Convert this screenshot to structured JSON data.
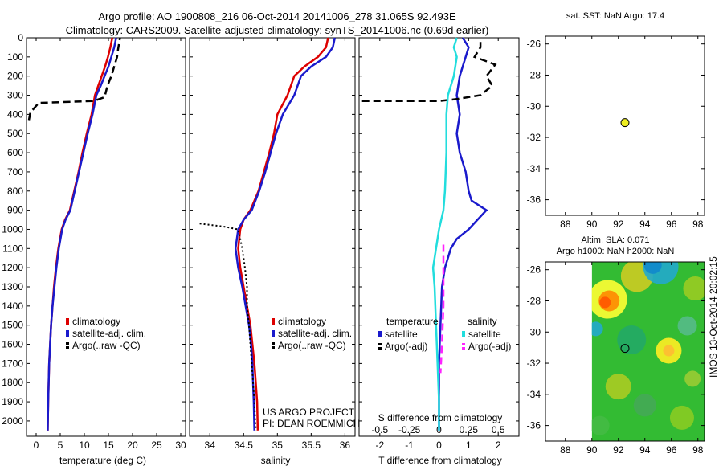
{
  "header": {
    "line1": "Argo profile: AO 1900808_216 06-Oct-2014 20141006_278 31.065S 92.493E",
    "line2": "Climatology: CARS2009. Satellite-adjusted climatology: synTS_20141006.nc (0.69d earlier)"
  },
  "colors": {
    "climatology": "#dd0000",
    "satellite": "#1a1acc",
    "argo": "#000000",
    "sat_salinity": "#22dddd",
    "argo_salinity": "#ff22ff",
    "sst_marker": "#eeee22"
  },
  "credits": {
    "line1": "US ARGO PROJECT",
    "line2": "PI: DEAN ROEMMICH"
  },
  "timestamp": "IMOS 13-Oct-2014 20:02:15",
  "chart_data": [
    {
      "id": "temperature",
      "type": "line",
      "xlabel": "temperature (deg C)",
      "ylabel": "",
      "xlim": [
        -2,
        31
      ],
      "ylim": [
        0,
        2080
      ],
      "y_reversed": true,
      "xticks": [
        0,
        5,
        10,
        15,
        20,
        25,
        30
      ],
      "yticks": [
        0,
        100,
        200,
        300,
        400,
        500,
        600,
        700,
        800,
        900,
        1000,
        1100,
        1200,
        1300,
        1400,
        1500,
        1600,
        1700,
        1800,
        1900,
        2000
      ],
      "legend": [
        "climatology",
        "satellite-adj. clim.",
        "Argo(..raw -QC)"
      ],
      "series": [
        {
          "name": "climatology",
          "color": "#dd0000",
          "style": "solid",
          "points": [
            [
              15.8,
              0
            ],
            [
              15.4,
              50
            ],
            [
              14.9,
              100
            ],
            [
              14.3,
              150
            ],
            [
              13.6,
              200
            ],
            [
              12.9,
              250
            ],
            [
              12.2,
              300
            ],
            [
              11.5,
              400
            ],
            [
              10.5,
              500
            ],
            [
              9.6,
              600
            ],
            [
              8.8,
              700
            ],
            [
              7.9,
              800
            ],
            [
              7.0,
              900
            ],
            [
              6.0,
              950
            ],
            [
              5.3,
              1000
            ],
            [
              4.6,
              1100
            ],
            [
              4.1,
              1200
            ],
            [
              3.7,
              1300
            ],
            [
              3.4,
              1400
            ],
            [
              3.1,
              1500
            ],
            [
              2.9,
              1600
            ],
            [
              2.7,
              1700
            ],
            [
              2.6,
              1800
            ],
            [
              2.5,
              1900
            ],
            [
              2.4,
              2050
            ]
          ]
        },
        {
          "name": "satellite-adj. clim.",
          "color": "#1a1acc",
          "style": "solid",
          "points": [
            [
              16.6,
              0
            ],
            [
              16.2,
              50
            ],
            [
              15.6,
              100
            ],
            [
              15.0,
              150
            ],
            [
              14.2,
              200
            ],
            [
              13.4,
              250
            ],
            [
              12.5,
              300
            ],
            [
              11.7,
              400
            ],
            [
              10.7,
              500
            ],
            [
              9.8,
              600
            ],
            [
              8.9,
              700
            ],
            [
              8.0,
              800
            ],
            [
              7.1,
              900
            ],
            [
              6.1,
              950
            ],
            [
              5.4,
              1000
            ],
            [
              4.7,
              1100
            ],
            [
              4.2,
              1200
            ],
            [
              3.8,
              1300
            ],
            [
              3.4,
              1400
            ],
            [
              3.1,
              1500
            ],
            [
              2.9,
              1600
            ],
            [
              2.7,
              1700
            ],
            [
              2.6,
              1800
            ],
            [
              2.5,
              1900
            ],
            [
              2.4,
              2050
            ]
          ]
        },
        {
          "name": "Argo(..raw -QC)",
          "color": "#000000",
          "style": "dashed",
          "points": [
            [
              -1.5,
              430
            ],
            [
              -1.2,
              390
            ],
            [
              0.2,
              350
            ],
            [
              0.5,
              340
            ],
            [
              12,
              330
            ],
            [
              14.2,
              310
            ],
            [
              14.8,
              250
            ],
            [
              15.6,
              200
            ],
            [
              16.2,
              150
            ],
            [
              16.8,
              100
            ],
            [
              17.0,
              60
            ],
            [
              17.2,
              30
            ],
            [
              17.4,
              0
            ]
          ]
        }
      ]
    },
    {
      "id": "salinity",
      "type": "line",
      "xlabel": "salinity",
      "ylabel": "",
      "xlim": [
        33.7,
        36.15
      ],
      "ylim": [
        0,
        2080
      ],
      "y_reversed": true,
      "xticks": [
        34,
        34.5,
        35,
        35.5,
        36
      ],
      "legend": [
        "climatology",
        "satellite-adj. clim.",
        "Argo(..raw -QC)"
      ],
      "series": [
        {
          "name": "climatology",
          "color": "#dd0000",
          "style": "solid",
          "points": [
            [
              35.75,
              0
            ],
            [
              35.72,
              50
            ],
            [
              35.6,
              100
            ],
            [
              35.4,
              150
            ],
            [
              35.25,
              200
            ],
            [
              35.15,
              300
            ],
            [
              35.0,
              400
            ],
            [
              34.95,
              500
            ],
            [
              34.88,
              600
            ],
            [
              34.8,
              700
            ],
            [
              34.72,
              800
            ],
            [
              34.6,
              900
            ],
            [
              34.5,
              950
            ],
            [
              34.45,
              1000
            ],
            [
              34.42,
              1100
            ],
            [
              34.45,
              1200
            ],
            [
              34.5,
              1300
            ],
            [
              34.55,
              1400
            ],
            [
              34.6,
              1500
            ],
            [
              34.63,
              1600
            ],
            [
              34.66,
              1700
            ],
            [
              34.68,
              1800
            ],
            [
              34.7,
              1900
            ],
            [
              34.71,
              2050
            ]
          ]
        },
        {
          "name": "satellite-adj. clim.",
          "color": "#1a1acc",
          "style": "solid",
          "points": [
            [
              35.85,
              0
            ],
            [
              35.82,
              50
            ],
            [
              35.72,
              100
            ],
            [
              35.5,
              150
            ],
            [
              35.35,
              200
            ],
            [
              35.25,
              300
            ],
            [
              35.08,
              400
            ],
            [
              34.98,
              500
            ],
            [
              34.9,
              600
            ],
            [
              34.82,
              700
            ],
            [
              34.73,
              800
            ],
            [
              34.62,
              900
            ],
            [
              34.5,
              950
            ],
            [
              34.42,
              1000
            ],
            [
              34.38,
              1100
            ],
            [
              34.42,
              1200
            ],
            [
              34.48,
              1300
            ],
            [
              34.53,
              1400
            ],
            [
              34.58,
              1500
            ],
            [
              34.61,
              1600
            ],
            [
              34.63,
              1700
            ],
            [
              34.64,
              1800
            ],
            [
              34.65,
              1900
            ],
            [
              34.66,
              2050
            ]
          ]
        },
        {
          "name": "Argo(..raw -QC)",
          "color": "#000000",
          "style": "dotted",
          "points": [
            [
              33.85,
              970
            ],
            [
              34.2,
              985
            ],
            [
              34.42,
              1000
            ],
            [
              34.48,
              1100
            ],
            [
              34.52,
              1200
            ],
            [
              34.55,
              1300
            ],
            [
              34.55,
              1400
            ],
            [
              34.58,
              1500
            ],
            [
              34.6,
              1600
            ],
            [
              34.62,
              1700
            ],
            [
              34.64,
              1800
            ],
            [
              34.66,
              1900
            ],
            [
              34.68,
              2050
            ]
          ]
        }
      ]
    },
    {
      "id": "difference",
      "type": "line",
      "xlabel": "T difference from climatology",
      "xlabel2": "S difference from climatology",
      "xlim": [
        -2.7,
        2.7
      ],
      "ylim": [
        0,
        2080
      ],
      "y_reversed": true,
      "xticks": [
        -2,
        -1,
        0,
        1,
        2
      ],
      "xticks_s": [
        "-0.5",
        "-0.25",
        "0",
        "0.25",
        "0.5"
      ],
      "legend_title_t": "temperature",
      "legend_title_s": "salinity",
      "legend": [
        "satellite",
        "Argo(-adj)",
        "satellite",
        "Argo(-adj)"
      ],
      "series": [
        {
          "name": "satellite",
          "group": "temperature",
          "color": "#1a1acc",
          "style": "solid",
          "points": [
            [
              0.8,
              0
            ],
            [
              1.0,
              50
            ],
            [
              0.9,
              100
            ],
            [
              0.8,
              150
            ],
            [
              0.7,
              200
            ],
            [
              0.6,
              300
            ],
            [
              0.7,
              400
            ],
            [
              0.6,
              500
            ],
            [
              0.7,
              600
            ],
            [
              0.9,
              700
            ],
            [
              1.0,
              800
            ],
            [
              1.1,
              850
            ],
            [
              1.6,
              900
            ],
            [
              1.3,
              950
            ],
            [
              1.0,
              1000
            ],
            [
              0.6,
              1050
            ],
            [
              0.4,
              1100
            ],
            [
              0.2,
              1200
            ],
            [
              0.1,
              1300
            ],
            [
              0.05,
              1500
            ],
            [
              0.0,
              1700
            ],
            [
              0.0,
              2050
            ]
          ]
        },
        {
          "name": "Argo(-adj)",
          "group": "temperature",
          "color": "#000000",
          "style": "dashed",
          "points": [
            [
              -2.6,
              330
            ],
            [
              -1.5,
              330
            ],
            [
              0.0,
              330
            ],
            [
              0.6,
              320
            ],
            [
              1.4,
              300
            ],
            [
              1.8,
              250
            ],
            [
              1.6,
              200
            ],
            [
              1.9,
              140
            ],
            [
              1.2,
              100
            ],
            [
              1.4,
              50
            ],
            [
              1.4,
              0
            ]
          ]
        },
        {
          "name": "satellite",
          "group": "salinity",
          "color": "#22dddd",
          "style": "solid",
          "points": [
            [
              0.6,
              0
            ],
            [
              0.5,
              50
            ],
            [
              0.6,
              100
            ],
            [
              0.5,
              200
            ],
            [
              0.3,
              300
            ],
            [
              0.25,
              400
            ],
            [
              0.25,
              600
            ],
            [
              0.2,
              800
            ],
            [
              0.15,
              900
            ],
            [
              0.0,
              1000
            ],
            [
              -0.1,
              1100
            ],
            [
              -0.2,
              1200
            ],
            [
              -0.15,
              1300
            ],
            [
              -0.1,
              1500
            ],
            [
              -0.05,
              1700
            ],
            [
              0.0,
              1900
            ],
            [
              0.0,
              2050
            ]
          ]
        },
        {
          "name": "Argo(-adj)",
          "group": "salinity",
          "color": "#ff22ff",
          "style": "dashed",
          "points": [
            [
              0.15,
              1080
            ],
            [
              0.15,
              1250
            ],
            [
              0.15,
              1400
            ],
            [
              0.1,
              1600
            ],
            [
              0.05,
              1750
            ]
          ]
        }
      ]
    },
    {
      "id": "sst_map",
      "type": "scatter",
      "title": "sat. SST: NaN Argo: 17.4",
      "xlim": [
        86.5,
        98.5
      ],
      "ylim": [
        -37,
        -25.5
      ],
      "xticks": [
        88,
        90,
        92,
        94,
        96,
        98
      ],
      "yticks": [
        -36,
        -34,
        -32,
        -30,
        -28,
        -26
      ],
      "points": [
        [
          92.5,
          -31.05
        ]
      ]
    },
    {
      "id": "sla_map",
      "type": "heatmap",
      "title": "Altim. SLA: 0.071",
      "subtitle": "Argo h1000: NaN h2000: NaN",
      "xlim": [
        86.5,
        98.5
      ],
      "ylim": [
        -37,
        -25.5
      ],
      "xticks": [
        88,
        90,
        92,
        94,
        96,
        98
      ],
      "yticks": [
        -36,
        -34,
        -32,
        -30,
        -28,
        -26
      ],
      "data_xrange": [
        90,
        98.5
      ],
      "points": [
        [
          92.5,
          -31.05
        ]
      ]
    }
  ]
}
